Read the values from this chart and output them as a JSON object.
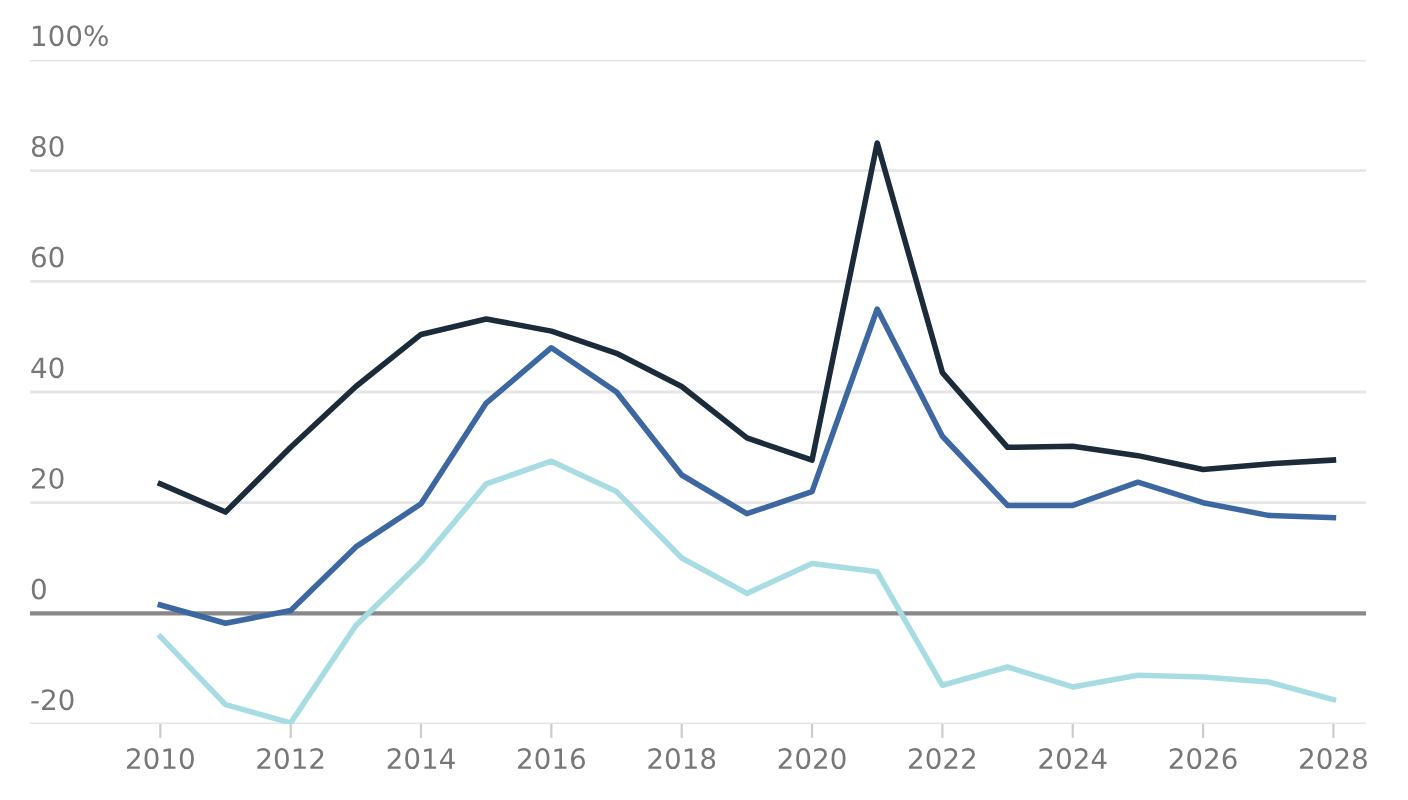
{
  "chart_data": {
    "type": "line",
    "x": [
      2010,
      2011,
      2012,
      2013,
      2014,
      2015,
      2016,
      2017,
      2018,
      2019,
      2020,
      2021,
      2022,
      2023,
      2024,
      2025,
      2026,
      2027,
      2028
    ],
    "series": [
      {
        "color": "#1c2b3a",
        "values": [
          23.4,
          18.3,
          30,
          41,
          50.4,
          53.2,
          51,
          47,
          41,
          31.7,
          27.7,
          85,
          43.5,
          30,
          30.2,
          28.5,
          26,
          27,
          27.7
        ]
      },
      {
        "color": "#3d67a0",
        "values": [
          1.5,
          -1.8,
          0.5,
          12,
          19.8,
          38,
          48,
          40,
          25,
          18,
          22,
          55,
          32,
          19.5,
          19.5,
          23.7,
          20,
          17.7,
          17.3
        ]
      },
      {
        "color": "#a8dce3",
        "values": [
          -4.2,
          -16.5,
          -19.8,
          -2.2,
          9.3,
          23.4,
          27.5,
          22,
          10,
          3.6,
          9,
          7.5,
          -13,
          -9.7,
          -13.3,
          -11.2,
          -11.5,
          -12.4,
          -15.6
        ]
      }
    ],
    "xlim": [
      2008,
      2028.5
    ],
    "xticks": [
      2010,
      2012,
      2014,
      2016,
      2018,
      2020,
      2022,
      2024,
      2026,
      2028
    ],
    "ylim": [
      -20,
      100
    ],
    "yticks": [
      -20,
      0,
      20,
      40,
      60,
      80,
      {
        "value": 100,
        "label": "100%"
      }
    ],
    "ref_lines": [
      {
        "axis": "y",
        "value": 0,
        "color": "#888888"
      }
    ],
    "grid": "y",
    "marker": "none",
    "line_style": "solid"
  }
}
